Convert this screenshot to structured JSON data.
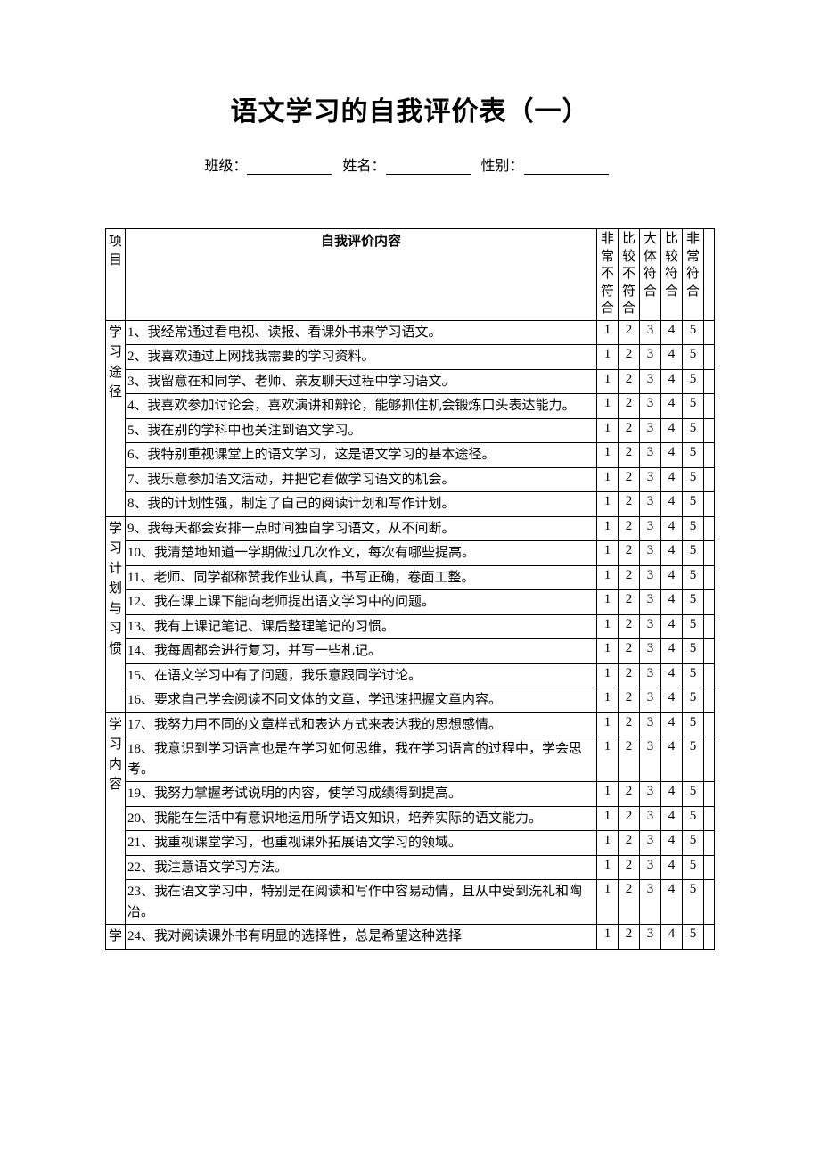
{
  "title": "语文学习的自我评价表（一）",
  "info": {
    "class_label": "班级：",
    "name_label": "姓名：",
    "gender_label": "性别："
  },
  "headers": {
    "project": "项目",
    "content": "自我评价内容",
    "scale1": "非常不符合",
    "scale2": "比较不符合",
    "scale3": "大体符合",
    "scale4": "比较符合",
    "scale5": "非常符合"
  },
  "scores": {
    "s1": "1",
    "s2": "2",
    "s3": "3",
    "s4": "4",
    "s5": "5"
  },
  "categories": [
    {
      "name": "学习途径",
      "items": [
        "1、我经常通过看电视、读报、看课外书来学习语文。",
        "2、我喜欢通过上网找我需要的学习资料。",
        "3、我留意在和同学、老师、亲友聊天过程中学习语文。",
        "4、我喜欢参加讨论会，喜欢演讲和辩论，能够抓住机会锻炼口头表达能力。",
        "5、我在别的学科中也关注到语文学习。",
        "6、我特别重视课堂上的语文学习，这是语文学习的基本途径。",
        "7、我乐意参加语文活动，并把它看做学习语文的机会。",
        "8、我的计划性强，制定了自己的阅读计划和写作计划。"
      ]
    },
    {
      "name": "学习计划与习惯",
      "items": [
        "9、我每天都会安排一点时间独自学习语文，从不间断。",
        "10、我清楚地知道一学期做过几次作文，每次有哪些提高。",
        "11、老师、同学都称赞我作业认真，书写正确，卷面工整。",
        "12、我在课上课下能向老师提出语文学习中的问题。",
        "13、我有上课记笔记、课后整理笔记的习惯。",
        "14、我每周都会进行复习，并写一些札记。",
        "15、在语文学习中有了问题，我乐意跟同学讨论。",
        "16、要求自己学会阅读不同文体的文章，学迅速把握文章内容。"
      ]
    },
    {
      "name": "学习内容",
      "items": [
        "17、我努力用不同的文章样式和表达方式来表达我的思想感情。",
        "18、我意识到学习语言也是在学习如何思维，我在学习语言的过程中，学会思考。",
        "19、我努力掌握考试说明的内容，使学习成绩得到提高。",
        "20、我能在生活中有意识地运用所学语文知识，培养实际的语文能力。",
        "21、我重视课堂学习，也重视课外拓展语文学习的领域。",
        "22、我注意语文学习方法。",
        "23、我在语文学习中，特别是在阅读和写作中容易动情，且从中受到洗礼和陶冶。"
      ]
    },
    {
      "name": "学",
      "items": [
        "24、我对阅读课外书有明显的选择性，总是希望这种选择"
      ]
    }
  ]
}
